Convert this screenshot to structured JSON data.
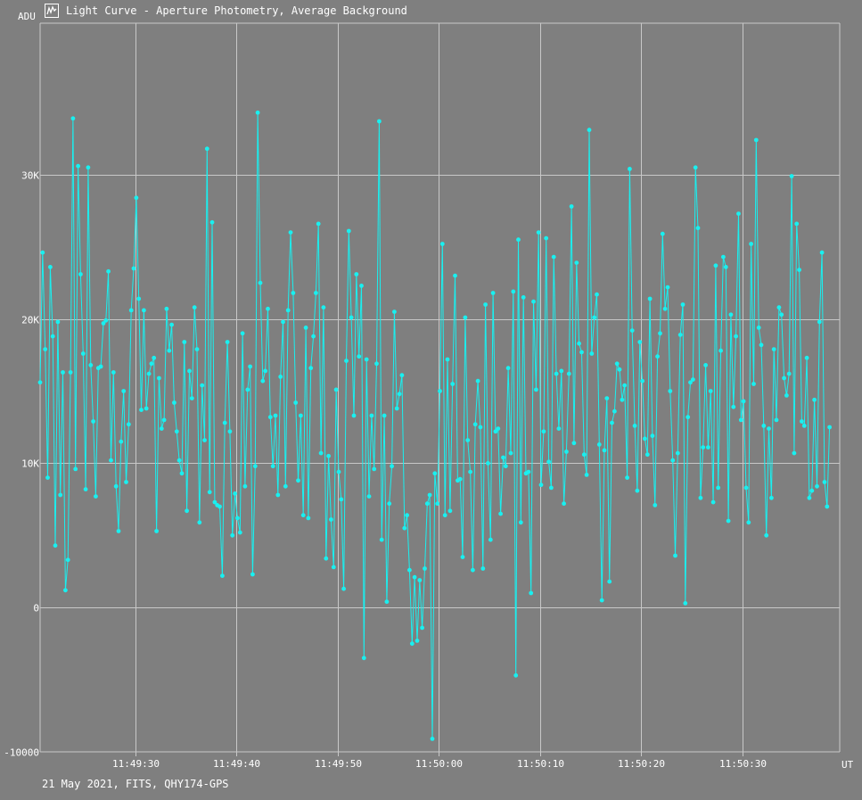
{
  "window": {
    "title": "Light Curve - Aperture Photometry, Average Background",
    "icon": "light-curve-app-icon"
  },
  "footer": {
    "caption": "21 May 2021, FITS, QHY174-GPS"
  },
  "colors": {
    "background": "#7f7f7f",
    "grid": "#c8c8c8",
    "series": "#19f0f0",
    "text": "#ffffff"
  },
  "chart_data": {
    "type": "line",
    "title": "Light Curve - Aperture Photometry, Average Background",
    "xlabel": "UT",
    "ylabel": "ADU",
    "grid": true,
    "markers": true,
    "x_range": [
      "11:49:20.6",
      "11:50:39.6"
    ],
    "x_ticks": [
      "11:49:30",
      "11:49:40",
      "11:49:50",
      "11:50:00",
      "11:50:10",
      "11:50:20",
      "11:50:30"
    ],
    "ylim": [
      -10000,
      40500
    ],
    "y_ticks": [
      {
        "value": -10000,
        "label": "-10000"
      },
      {
        "value": 0,
        "label": "0"
      },
      {
        "value": 10000,
        "label": "10K"
      },
      {
        "value": 20000,
        "label": "20K"
      },
      {
        "value": 30000,
        "label": "30K"
      }
    ],
    "sample_interval_s": 0.25,
    "series": [
      {
        "values": [
          15600,
          24600,
          17900,
          9000,
          23600,
          18800,
          4300,
          19800,
          7800,
          16300,
          1200,
          3300,
          16300,
          33900,
          9600,
          30600,
          23100,
          17600,
          8200,
          30500,
          16800,
          12900,
          7700,
          16600,
          16700,
          19700,
          19900,
          23300,
          10200,
          16300,
          8400,
          5300,
          11500,
          15000,
          8700,
          12700,
          20600,
          23500,
          28400,
          21400,
          13700,
          20600,
          13800,
          16200,
          16900,
          17300,
          5300,
          15900,
          12400,
          13000,
          20700,
          17800,
          19600,
          14200,
          12200,
          10200,
          9300,
          18400,
          6700,
          16400,
          14500,
          20800,
          17900,
          5900,
          15400,
          11600,
          31800,
          8000,
          26700,
          7300,
          7100,
          7000,
          2200,
          12800,
          18400,
          12200,
          5000,
          7900,
          6200,
          5200,
          19000,
          8400,
          15100,
          16700,
          2300,
          9800,
          34300,
          22500,
          15700,
          16400,
          20700,
          13200,
          9800,
          13300,
          7800,
          16000,
          19800,
          8400,
          20600,
          26000,
          21800,
          14200,
          8800,
          13300,
          6400,
          19400,
          6200,
          16600,
          18800,
          21800,
          26600,
          10700,
          20800,
          3400,
          10500,
          6100,
          2800,
          15100,
          9400,
          7500,
          1300,
          17100,
          26100,
          20100,
          13300,
          23100,
          17400,
          22300,
          -3500,
          17200,
          7700,
          13300,
          9600,
          16900,
          33700,
          4700,
          13300,
          400,
          7200,
          9800,
          20500,
          13800,
          14800,
          16100,
          5500,
          6400,
          2600,
          -2500,
          2100,
          -2300,
          1900,
          -1400,
          2700,
          7200,
          7800,
          -9100,
          9300,
          7200,
          15000,
          25200,
          6400,
          17200,
          6700,
          15500,
          23000,
          8800,
          8900,
          3500,
          20100,
          11600,
          9400,
          2600,
          12700,
          15700,
          12500,
          2700,
          21000,
          10000,
          4700,
          21800,
          12200,
          12400,
          6500,
          10400,
          9800,
          16600,
          10700,
          21900,
          -4700,
          25500,
          5900,
          21500,
          9300,
          9400,
          1000,
          21200,
          15100,
          26000,
          8500,
          12200,
          25600,
          10100,
          8300,
          24300,
          16200,
          12400,
          16400,
          7200,
          10800,
          16200,
          27800,
          11400,
          23900,
          18300,
          17700,
          10600,
          9200,
          33100,
          17600,
          20100,
          21700,
          11300,
          500,
          10900,
          14500,
          1800,
          12800,
          13600,
          16900,
          16500,
          14400,
          15400,
          9000,
          30400,
          19200,
          12600,
          8100,
          18400,
          15700,
          11700,
          10600,
          21400,
          11900,
          7100,
          17400,
          19000,
          25900,
          20700,
          22200,
          15000,
          10200,
          3600,
          10700,
          18900,
          21000,
          300,
          13200,
          15600,
          15800,
          30500,
          26300,
          7600,
          11100,
          16800,
          11100,
          15000,
          7300,
          23700,
          8300,
          17800,
          24300,
          23600,
          6000,
          20300,
          13900,
          18800,
          27300,
          13000,
          14300,
          8300,
          5900,
          25200,
          15500,
          32400,
          19400,
          18200,
          12600,
          5000,
          12400,
          7600,
          17900,
          13000,
          20800,
          20300,
          15900,
          14700,
          16200,
          29900,
          10700,
          26600,
          23400,
          12900,
          12600,
          17300,
          7600,
          8100,
          14400,
          8400,
          19800,
          24600,
          8700,
          7000,
          12500
        ]
      }
    ]
  }
}
